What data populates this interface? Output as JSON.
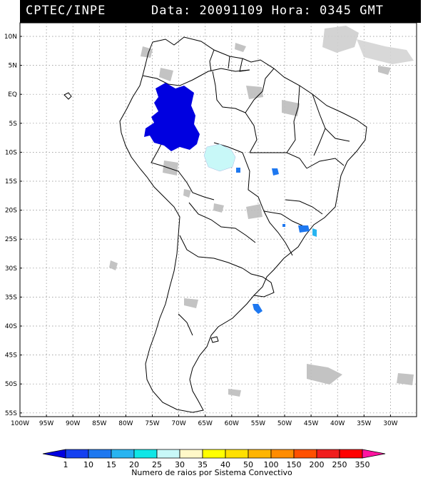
{
  "header": {
    "source": "CPTEC/INPE",
    "data_label": "Data:",
    "date": "20091109",
    "hora_label": "Hora:",
    "time": "0345",
    "tz": "GMT"
  },
  "axes": {
    "lat_labels": [
      "10N",
      "5N",
      "EQ",
      "5S",
      "10S",
      "15S",
      "20S",
      "25S",
      "30S",
      "35S",
      "40S",
      "45S",
      "50S",
      "55S"
    ],
    "lon_labels": [
      "100W",
      "95W",
      "90W",
      "85W",
      "80W",
      "75W",
      "70W",
      "65W",
      "60W",
      "55W",
      "50W",
      "45W",
      "40W",
      "35W",
      "30W"
    ]
  },
  "legend": {
    "title": "Numero de raios por Sistema Convectivo",
    "ticks": [
      "1",
      "10",
      "15",
      "20",
      "25",
      "30",
      "35",
      "40",
      "50",
      "100",
      "150",
      "200",
      "250",
      "350"
    ],
    "colors": [
      "#0000e0",
      "#1440f0",
      "#1e78f0",
      "#28b4f0",
      "#10e6e6",
      "#c8f8f8",
      "#fff8c8",
      "#ffff00",
      "#ffe000",
      "#ffb400",
      "#ff8c00",
      "#ff5000",
      "#f01e1e",
      "#ff0000",
      "#ff14a0"
    ]
  },
  "systems": [
    {
      "name": "western-amazon-cluster",
      "color": "#0000e0",
      "max_flashes": "1-10"
    },
    {
      "name": "central-brazil-cell",
      "color": "#c8f8f8"
    },
    {
      "name": "goias-cell",
      "color": "#1e78f0"
    },
    {
      "name": "minas-cell",
      "color": "#1e78f0"
    },
    {
      "name": "sao-paulo-cell",
      "color": "#1e78f0"
    },
    {
      "name": "rio-cell",
      "color": "#28b4f0"
    },
    {
      "name": "uruguay-coast-cell",
      "color": "#1e78f0"
    }
  ]
}
